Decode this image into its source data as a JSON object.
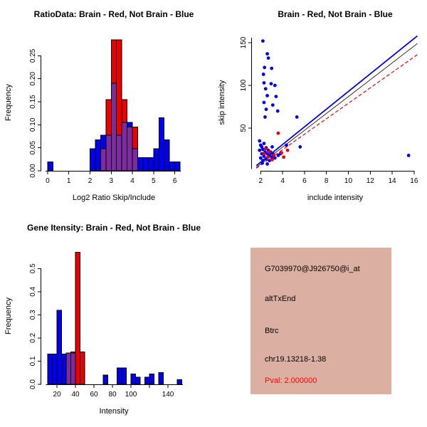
{
  "page": {
    "background": "#ffffff"
  },
  "colors": {
    "brain": "#EE0000",
    "not_brain": "#0000EE",
    "overlap": "#7C2BA0",
    "info_bg": "#DBB0A3",
    "pval": "#FF0000"
  },
  "chart_data": [
    {
      "id": "ratio_hist",
      "type": "bar",
      "subtype": "overlaid-histogram",
      "title": "RatioData: Brain - Red, Not Brain - Blue",
      "xlabel": "Log2 Ratio Skip/Include",
      "ylabel": "Frequency",
      "xlim": [
        -0.3,
        6.55
      ],
      "ylim": [
        0,
        0.297
      ],
      "grid": false,
      "legend": "none",
      "xticks": [
        {
          "v": 0,
          "l": "0"
        },
        {
          "v": 1,
          "l": "1"
        },
        {
          "v": 2,
          "l": "2"
        },
        {
          "v": 3,
          "l": "3"
        },
        {
          "v": 4,
          "l": "4"
        },
        {
          "v": 5,
          "l": "5"
        },
        {
          "v": 6,
          "l": "6"
        }
      ],
      "yticks": [
        {
          "v": 0,
          "l": "0.00"
        },
        {
          "v": 0.05,
          "l": "0.05"
        },
        {
          "v": 0.1,
          "l": "0.10"
        },
        {
          "v": 0.15,
          "l": "0.15"
        },
        {
          "v": 0.2,
          "l": "0.20"
        },
        {
          "v": 0.25,
          "l": "0.25"
        }
      ],
      "xaxis_line": [
        -0.1,
        6.28
      ],
      "bin_width": 0.25,
      "overlap_color": "#7C2BA0",
      "series": [
        {
          "name": "Not Brain",
          "color": "#0000EE",
          "bins": [
            [
              0,
              0.019
            ],
            [
              2,
              0.048
            ],
            [
              2.25,
              0.067
            ],
            [
              2.5,
              0.077
            ],
            [
              2.75,
              0.077
            ],
            [
              3,
              0.19
            ],
            [
              3.25,
              0.077
            ],
            [
              3.5,
              0.105
            ],
            [
              3.75,
              0.105
            ],
            [
              4,
              0.048
            ],
            [
              4.25,
              0.029
            ],
            [
              4.5,
              0.029
            ],
            [
              4.75,
              0.029
            ],
            [
              5,
              0.048
            ],
            [
              5.25,
              0.115
            ],
            [
              5.5,
              0.067
            ],
            [
              5.75,
              0.019
            ],
            [
              6,
              0.019
            ]
          ]
        },
        {
          "name": "Brain",
          "color": "#EE0000",
          "bins": [
            [
              2.5,
              0.048
            ],
            [
              2.75,
              0.155
            ],
            [
              3,
              0.285
            ],
            [
              3.25,
              0.285
            ],
            [
              3.5,
              0.155
            ],
            [
              3.75,
              0.095
            ],
            [
              4,
              0.095
            ]
          ]
        }
      ]
    },
    {
      "id": "intensity_scatter",
      "type": "scatter",
      "title": "Brain - Red, Not Brain - Blue",
      "xlabel": "include intensity",
      "ylabel": "skip intensity",
      "xlim": [
        1.2,
        16.4
      ],
      "ylim": [
        0,
        160
      ],
      "grid": false,
      "legend": "none",
      "xticks": [
        {
          "v": 2,
          "l": "2"
        },
        {
          "v": 4,
          "l": "4"
        },
        {
          "v": 6,
          "l": "6"
        },
        {
          "v": 8,
          "l": "8"
        },
        {
          "v": 10,
          "l": "10"
        },
        {
          "v": 12,
          "l": "12"
        },
        {
          "v": 14,
          "l": "14"
        },
        {
          "v": 16,
          "l": "16"
        }
      ],
      "yticks": [
        {
          "v": 50,
          "l": "50"
        },
        {
          "v": 100,
          "l": "100"
        },
        {
          "v": 150,
          "l": "150"
        }
      ],
      "yaxis_line": [
        2,
        156
      ],
      "series": [
        {
          "name": "Not Brain",
          "color": "#0000EE",
          "points": [
            [
              2.2,
              152
            ],
            [
              2.6,
              137
            ],
            [
              2.7,
              132
            ],
            [
              2.35,
              121
            ],
            [
              3,
              120
            ],
            [
              2.25,
              113
            ],
            [
              2.3,
              103
            ],
            [
              2.95,
              102
            ],
            [
              3.3,
              100
            ],
            [
              2.45,
              96
            ],
            [
              2.6,
              88
            ],
            [
              3.4,
              87
            ],
            [
              2.3,
              80
            ],
            [
              3.1,
              77
            ],
            [
              2.5,
              72
            ],
            [
              3.55,
              70
            ],
            [
              2.4,
              63
            ],
            [
              5.3,
              63
            ],
            [
              5.6,
              28
            ],
            [
              4.35,
              30
            ],
            [
              1.9,
              35
            ],
            [
              2,
              30
            ],
            [
              2.1,
              28
            ],
            [
              2.2,
              25
            ],
            [
              2.3,
              32
            ],
            [
              2.4,
              22
            ],
            [
              2.5,
              27
            ],
            [
              2.6,
              20
            ],
            [
              2.7,
              24
            ],
            [
              2.8,
              18
            ],
            [
              2.9,
              22
            ],
            [
              3,
              16
            ],
            [
              3.1,
              20
            ],
            [
              2,
              15
            ],
            [
              2.2,
              12
            ],
            [
              2.5,
              14
            ],
            [
              2.8,
              12
            ],
            [
              3.3,
              15
            ],
            [
              3.6,
              18
            ],
            [
              2.1,
              20
            ],
            [
              1.9,
              24
            ],
            [
              2.3,
              17
            ],
            [
              3.05,
              28
            ],
            [
              3.8,
              20
            ],
            [
              2.15,
              9
            ],
            [
              2.6,
              8
            ],
            [
              15.5,
              18
            ]
          ]
        },
        {
          "name": "Brain",
          "color": "#EE0000",
          "points": [
            [
              3.6,
              44
            ],
            [
              2.45,
              26
            ],
            [
              2.8,
              22
            ],
            [
              3.2,
              18
            ],
            [
              3.9,
              21
            ],
            [
              4.45,
              24
            ],
            [
              2.65,
              16
            ],
            [
              3.05,
              13
            ],
            [
              4.1,
              16
            ],
            [
              2.3,
              20
            ]
          ]
        }
      ],
      "lines": [
        {
          "name": "blue-fit",
          "color": "#0000EE",
          "width": 1.8,
          "dash": "",
          "x1": 1.6,
          "y1": 6,
          "x2": 16.3,
          "y2": 158
        },
        {
          "name": "reference",
          "color": "#000000",
          "width": 0.8,
          "dash": "",
          "x1": 1.6,
          "y1": 4,
          "x2": 16.3,
          "y2": 149
        },
        {
          "name": "red-fit",
          "color": "#EE0000",
          "width": 1.2,
          "dash": "5,3",
          "x1": 1.6,
          "y1": 3,
          "x2": 16.3,
          "y2": 136
        }
      ]
    },
    {
      "id": "gene_hist",
      "type": "bar",
      "subtype": "overlaid-histogram",
      "title": "Gene Itensity: Brain - Red, Not Brain - Blue",
      "xlabel": "Intensity",
      "ylabel": "Frequency",
      "xlim": [
        3,
        160
      ],
      "ylim": [
        0,
        0.59
      ],
      "grid": false,
      "legend": "none",
      "xticks": [
        {
          "v": 20,
          "l": "20"
        },
        {
          "v": 40,
          "l": "40"
        },
        {
          "v": 60,
          "l": "60"
        },
        {
          "v": 80,
          "l": "80"
        },
        {
          "v": 100,
          "l": "100"
        },
        {
          "v": 120,
          "l": ""
        },
        {
          "v": 140,
          "l": "140"
        }
      ],
      "yticks": [
        {
          "v": 0,
          "l": "0.0"
        },
        {
          "v": 0.1,
          "l": "0.1"
        },
        {
          "v": 0.2,
          "l": "0.2"
        },
        {
          "v": 0.3,
          "l": "0.3"
        },
        {
          "v": 0.4,
          "l": "0.4"
        },
        {
          "v": 0.5,
          "l": "0.5"
        }
      ],
      "xaxis_line": [
        8,
        156
      ],
      "bin_width": 5,
      "overlap_color": "#7C2BA0",
      "series": [
        {
          "name": "Not Brain",
          "color": "#0000EE",
          "bins": [
            [
              10,
              0.13
            ],
            [
              15,
              0.13
            ],
            [
              20,
              0.32
            ],
            [
              25,
              0.13
            ],
            [
              30,
              0.135
            ],
            [
              35,
              0.135
            ],
            [
              70,
              0.04
            ],
            [
              85,
              0.07
            ],
            [
              90,
              0.07
            ],
            [
              100,
              0.045
            ],
            [
              105,
              0.03
            ],
            [
              115,
              0.03
            ],
            [
              120,
              0.045
            ],
            [
              130,
              0.05
            ],
            [
              150,
              0.02
            ]
          ]
        },
        {
          "name": "Brain",
          "color": "#EE0000",
          "bins": [
            [
              30,
              0.135
            ],
            [
              35,
              0.14
            ],
            [
              40,
              0.57
            ],
            [
              45,
              0.14
            ]
          ]
        }
      ]
    }
  ],
  "info_panel": {
    "bg": "#DBB0A3",
    "lines": [
      {
        "text": "G7039970@J926750@i_at",
        "color": "#000000"
      },
      {
        "text": "altTxEnd",
        "color": "#000000"
      },
      {
        "text": "Btrc",
        "color": "#000000"
      },
      {
        "text": "chr19.13218-1.38",
        "color": "#000000"
      },
      {
        "text": "Pval: 2.000000",
        "color": "#FF0000"
      }
    ]
  }
}
